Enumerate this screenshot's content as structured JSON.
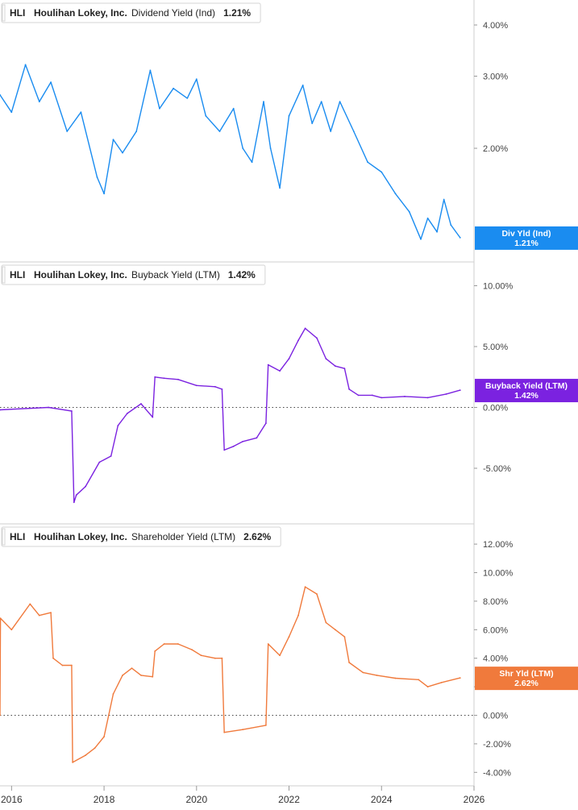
{
  "chart_data": [
    {
      "type": "line",
      "ticker": "HLI",
      "company": "Houlihan Lokey, Inc.",
      "metric": "Dividend Yield (Ind)",
      "current_value": "1.21%",
      "end_label": {
        "name": "Div Yld (Ind)",
        "value": "1.21%"
      },
      "color": "#1a8cf0",
      "y_axis": {
        "scale": "log",
        "ticks": [
          2,
          3,
          4
        ],
        "tick_labels": [
          "2.00%",
          "3.00%",
          "4.00%"
        ]
      },
      "series": [
        {
          "x": [
            2015.75,
            2016.0,
            2016.3,
            2016.6,
            2016.85,
            2017.2,
            2017.5,
            2017.85,
            2018.0,
            2018.2,
            2018.4,
            2018.7,
            2019.0,
            2019.2,
            2019.5,
            2019.8,
            2020.0,
            2020.2,
            2020.5,
            2020.8,
            2021.0,
            2021.2,
            2021.45,
            2021.6,
            2021.8,
            2022.0,
            2022.3,
            2022.5,
            2022.7,
            2022.9,
            2023.1,
            2023.4,
            2023.7,
            2024.0,
            2024.3,
            2024.6,
            2024.85,
            2025.0,
            2025.2,
            2025.35,
            2025.5,
            2025.7
          ],
          "y": [
            2.7,
            2.45,
            3.2,
            2.6,
            2.9,
            2.2,
            2.45,
            1.7,
            1.55,
            2.1,
            1.95,
            2.2,
            3.1,
            2.5,
            2.8,
            2.65,
            2.95,
            2.4,
            2.2,
            2.5,
            2.0,
            1.85,
            2.6,
            2.0,
            1.6,
            2.4,
            2.85,
            2.3,
            2.6,
            2.2,
            2.6,
            2.2,
            1.85,
            1.75,
            1.55,
            1.4,
            1.2,
            1.35,
            1.25,
            1.5,
            1.3,
            1.21
          ]
        }
      ]
    },
    {
      "type": "line",
      "ticker": "HLI",
      "company": "Houlihan Lokey, Inc.",
      "metric": "Buyback Yield (LTM)",
      "current_value": "1.42%",
      "end_label": {
        "name": "Buyback Yield (LTM)",
        "value": "1.42%"
      },
      "color": "#7b22e0",
      "y_axis": {
        "ticks": [
          -5,
          0,
          5,
          10
        ],
        "tick_labels": [
          "-5.00%",
          "0.00%",
          "5.00%",
          "10.00%"
        ],
        "zero_line": true
      },
      "series": [
        {
          "x": [
            2015.75,
            2016.8,
            2017.3,
            2017.35,
            2017.4,
            2017.6,
            2017.9,
            2018.15,
            2018.3,
            2018.5,
            2018.8,
            2019.05,
            2019.1,
            2019.3,
            2019.6,
            2020.0,
            2020.4,
            2020.55,
            2020.6,
            2020.8,
            2021.0,
            2021.3,
            2021.5,
            2021.55,
            2021.8,
            2022.0,
            2022.2,
            2022.35,
            2022.6,
            2022.8,
            2023.0,
            2023.2,
            2023.3,
            2023.5,
            2023.8,
            2024.0,
            2024.5,
            2025.0,
            2025.4,
            2025.7
          ],
          "y": [
            -0.2,
            0.0,
            -0.3,
            -7.8,
            -7.2,
            -6.5,
            -4.5,
            -4.0,
            -1.5,
            -0.5,
            0.3,
            -0.8,
            2.5,
            2.4,
            2.3,
            1.8,
            1.7,
            1.5,
            -3.5,
            -3.2,
            -2.8,
            -2.5,
            -1.3,
            3.5,
            3.0,
            4.0,
            5.5,
            6.5,
            5.7,
            4.0,
            3.4,
            3.2,
            1.5,
            1.0,
            1.0,
            0.8,
            0.9,
            0.8,
            1.1,
            1.42
          ]
        }
      ]
    },
    {
      "type": "line",
      "ticker": "HLI",
      "company": "Houlihan Lokey, Inc.",
      "metric": "Shareholder Yield (LTM)",
      "current_value": "2.62%",
      "end_label": {
        "name": "Shr Yld (LTM)",
        "value": "2.62%"
      },
      "color": "#f07a3c",
      "y_axis": {
        "ticks": [
          -4,
          -2,
          0,
          2,
          4,
          6,
          8,
          10,
          12
        ],
        "tick_labels": [
          "-4.00%",
          "-2.00%",
          "0.00%",
          "2.00%",
          "4.00%",
          "6.00%",
          "8.00%",
          "10.00%",
          "12.00%"
        ],
        "zero_line": true
      },
      "series": [
        {
          "x": [
            2015.75,
            2015.76,
            2016.0,
            2016.4,
            2016.6,
            2016.85,
            2016.9,
            2017.1,
            2017.3,
            2017.32,
            2017.6,
            2017.8,
            2018.0,
            2018.2,
            2018.4,
            2018.6,
            2018.8,
            2019.05,
            2019.1,
            2019.3,
            2019.6,
            2019.9,
            2020.1,
            2020.4,
            2020.55,
            2020.6,
            2021.0,
            2021.5,
            2021.55,
            2021.8,
            2022.0,
            2022.2,
            2022.35,
            2022.6,
            2022.8,
            2023.0,
            2023.2,
            2023.3,
            2023.6,
            2023.9,
            2024.3,
            2024.8,
            2025.0,
            2025.3,
            2025.7
          ],
          "y": [
            0.0,
            6.8,
            6.0,
            7.8,
            7.0,
            7.2,
            4.0,
            3.5,
            3.5,
            -3.3,
            -2.8,
            -2.3,
            -1.5,
            1.5,
            2.8,
            3.3,
            2.8,
            2.7,
            4.5,
            5.0,
            5.0,
            4.6,
            4.2,
            4.0,
            4.0,
            -1.2,
            -1.0,
            -0.7,
            5.0,
            4.2,
            5.5,
            7.0,
            9.0,
            8.5,
            6.5,
            6.0,
            5.5,
            3.7,
            3.0,
            2.8,
            2.6,
            2.5,
            2.0,
            2.3,
            2.62
          ]
        }
      ]
    }
  ],
  "x_axis": {
    "min": 2015.75,
    "max": 2026.0,
    "ticks": [
      2016,
      2018,
      2020,
      2022,
      2024,
      2026
    ],
    "tick_labels": [
      "2016",
      "2018",
      "2020",
      "2022",
      "2024",
      "2026"
    ]
  }
}
